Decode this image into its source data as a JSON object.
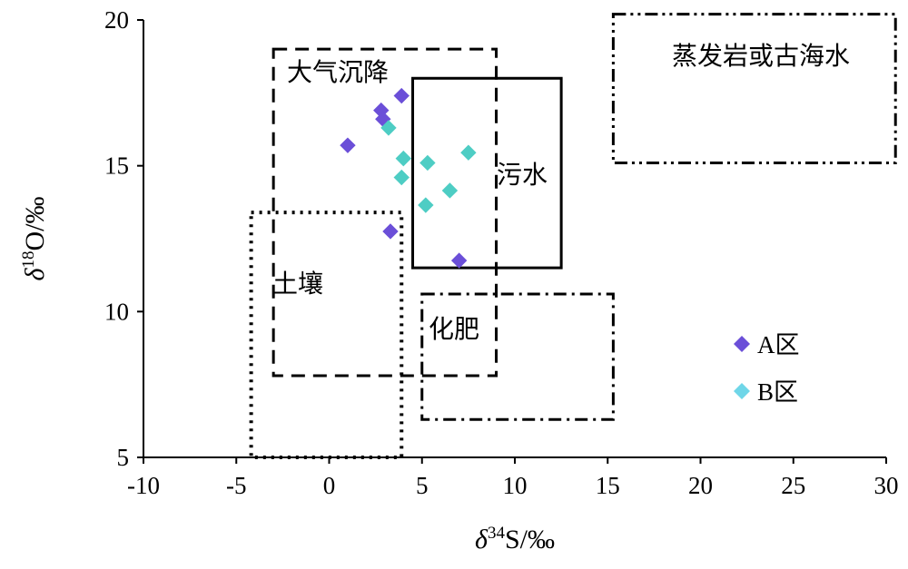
{
  "chart_data": {
    "type": "scatter",
    "title": "",
    "xlabel": {
      "italic": "δ",
      "sup": "34",
      "rest": "S/‰"
    },
    "ylabel": {
      "italic": "δ",
      "sup": "18",
      "rest": "O/‰"
    },
    "xlim": [
      -10,
      30
    ],
    "ylim": [
      5,
      20
    ],
    "x_ticks": [
      -10,
      -5,
      0,
      5,
      10,
      15,
      20,
      25,
      30
    ],
    "y_ticks": [
      5,
      10,
      15,
      20
    ],
    "grid": false,
    "legend_position": "right",
    "series": [
      {
        "name": "A区",
        "color": "#6b4fd8",
        "marker": "diamond",
        "points": [
          {
            "x": 1.0,
            "y": 15.7
          },
          {
            "x": 2.8,
            "y": 16.9
          },
          {
            "x": 2.9,
            "y": 16.6
          },
          {
            "x": 3.9,
            "y": 17.4
          },
          {
            "x": 3.3,
            "y": 12.75
          },
          {
            "x": 7.0,
            "y": 11.75
          }
        ]
      },
      {
        "name": "B区",
        "color": "#4ecdc4",
        "marker": "diamond",
        "points": [
          {
            "x": 3.2,
            "y": 16.3
          },
          {
            "x": 4.0,
            "y": 15.25
          },
          {
            "x": 3.9,
            "y": 14.6
          },
          {
            "x": 5.3,
            "y": 15.1
          },
          {
            "x": 5.2,
            "y": 13.65
          },
          {
            "x": 6.5,
            "y": 14.15
          },
          {
            "x": 7.5,
            "y": 15.45
          }
        ]
      }
    ],
    "regions": [
      {
        "name": "大气沉降",
        "x_range": [
          -3,
          9
        ],
        "y_range": [
          7.8,
          19.0
        ],
        "line": "dashed"
      },
      {
        "name": "污水",
        "x_range": [
          4.5,
          12.5
        ],
        "y_range": [
          11.5,
          18.0
        ],
        "line": "solid"
      },
      {
        "name": "蒸发岩或古海水",
        "x_range": [
          15.3,
          30.5
        ],
        "y_range": [
          15.1,
          20.2
        ],
        "line": "dash-dot-dot"
      },
      {
        "name": "土壤",
        "x_range": [
          -4.2,
          3.9
        ],
        "y_range": [
          5.0,
          13.4
        ],
        "line": "dotted"
      },
      {
        "name": "化肥",
        "x_range": [
          5.0,
          15.3
        ],
        "y_range": [
          6.3,
          10.6
        ],
        "line": "dash-dot"
      }
    ],
    "legend": [
      {
        "label": "A区",
        "color": "#6b4fd8"
      },
      {
        "label": "B区",
        "color": "#6fd6e8"
      }
    ]
  }
}
